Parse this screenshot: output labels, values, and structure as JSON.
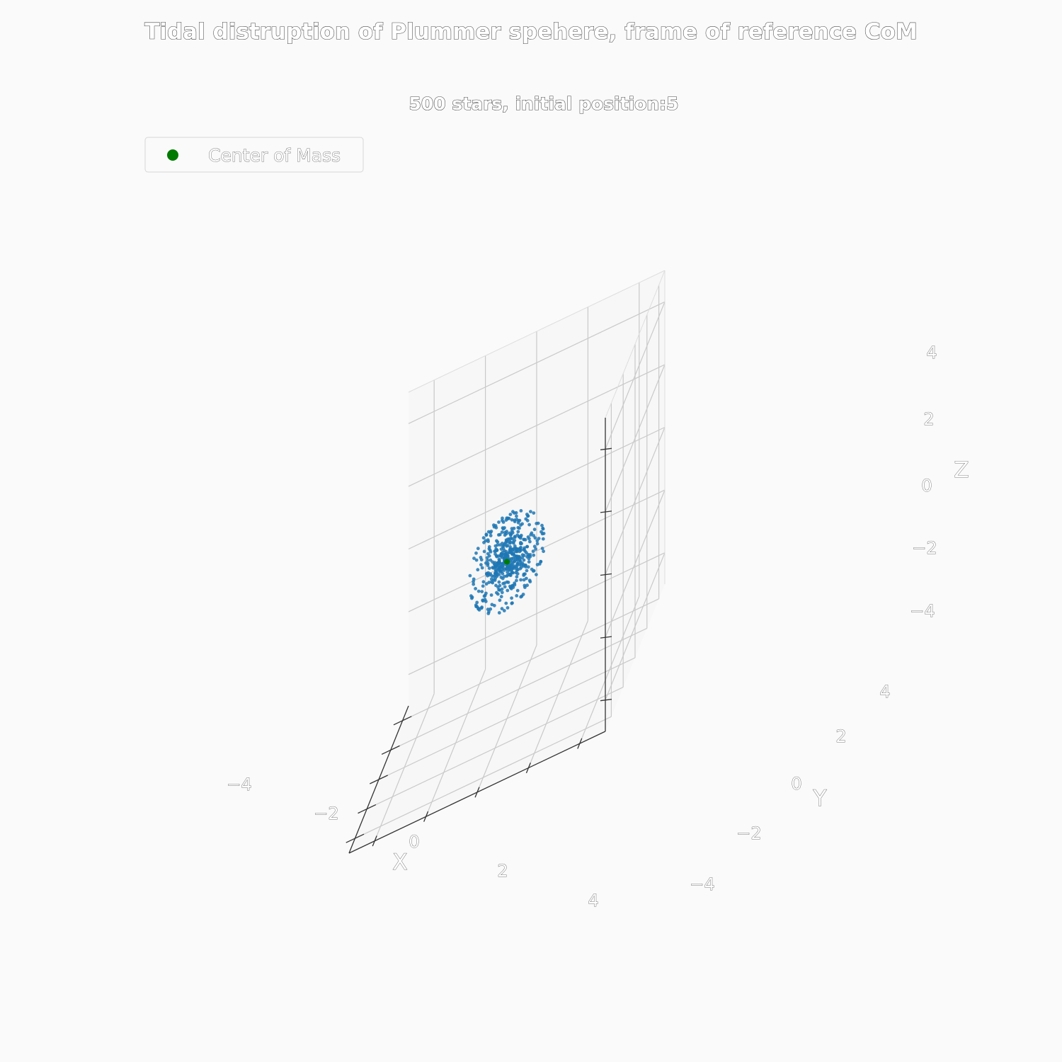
{
  "chart_data": {
    "type": "scatter",
    "title": "Tidal distruption of Plummer spehere, frame of reference CoM",
    "subtitle": "500 stars, initial position:5",
    "xlabel": "X",
    "ylabel": "Y",
    "zlabel": "Z",
    "xlim": [
      -5,
      5
    ],
    "ylim": [
      -5,
      5
    ],
    "zlim": [
      -5,
      5
    ],
    "xticks": [
      "−4",
      "−2",
      "0",
      "2",
      "4"
    ],
    "yticks": [
      "−4",
      "−2",
      "0",
      "2",
      "4"
    ],
    "zticks": [
      "−4",
      "−2",
      "0",
      "2",
      "4"
    ],
    "grid": true,
    "legend": {
      "placement": "top-left",
      "entries": [
        "Center of Mass"
      ]
    },
    "series": [
      {
        "color": "#1f77b4",
        "count": 500,
        "distribution": "plummer",
        "center": [
          0,
          0,
          0
        ],
        "scale_radius": 1
      },
      {
        "name": "Center of Mass",
        "color": "#007a00",
        "points": [
          [
            0,
            0,
            0
          ]
        ]
      }
    ]
  }
}
